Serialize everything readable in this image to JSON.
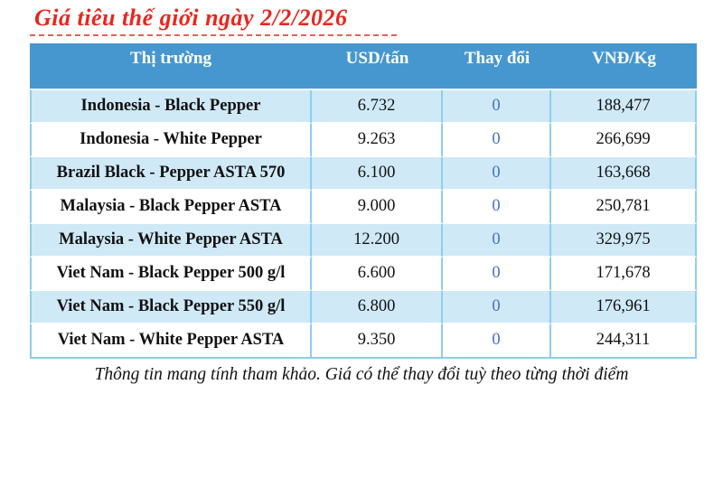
{
  "page": {
    "title": "Giá tiêu thế giới ngày 2/2/2026",
    "footer": "Thông tin mang tính tham khảo. Giá có thể thay đổi tuỳ theo từng thời điểm"
  },
  "table": {
    "headers": [
      "Thị trường",
      "USD/tấn",
      "Thay đổi",
      "VNĐ/Kg"
    ],
    "rows": [
      {
        "market": "Indonesia - Black Pepper",
        "usd": "6.732",
        "change": "0",
        "vnd": "188,477"
      },
      {
        "market": "Indonesia - White Pepper",
        "usd": "9.263",
        "change": "0",
        "vnd": "266,699"
      },
      {
        "market": "Brazil Black - Pepper ASTA 570",
        "usd": "6.100",
        "change": "0",
        "vnd": "163,668"
      },
      {
        "market": "Malaysia - Black Pepper ASTA",
        "usd": "9.000",
        "change": "0",
        "vnd": "250,781"
      },
      {
        "market": "Malaysia - White Pepper ASTA",
        "usd": "12.200",
        "change": "0",
        "vnd": "329,975"
      },
      {
        "market": "Viet Nam - Black Pepper 500 g/l",
        "usd": "6.600",
        "change": "0",
        "vnd": "171,678"
      },
      {
        "market": "Viet Nam - Black Pepper 550 g/l",
        "usd": "6.800",
        "change": "0",
        "vnd": "176,961"
      },
      {
        "market": "Viet Nam - White Pepper ASTA",
        "usd": "9.350",
        "change": "0",
        "vnd": "244,311"
      }
    ]
  },
  "colors": {
    "header_bg": "#4697d0",
    "row_alt_bg": "#cfe9f7",
    "grid_line": "#8ecdee",
    "title_red": "#e8271d",
    "change_blue": "#4472c4"
  }
}
